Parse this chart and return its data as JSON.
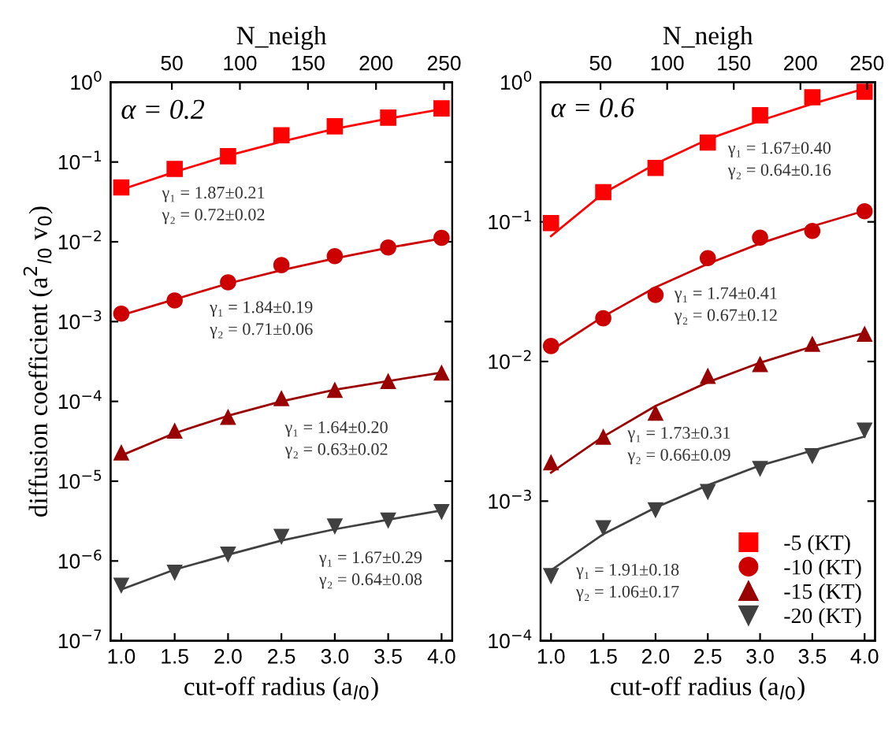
{
  "chart_data": [
    {
      "type": "scatter",
      "xlabel": "cut-off radius (a$_{l0}$)",
      "ylabel": "diffusion coefficient (a$^{2}$$_{l0}$ v$_{0}$)",
      "x2label": "N_neigh",
      "x": [
        1.0,
        1.5,
        2.0,
        2.5,
        3.0,
        3.5,
        4.0
      ],
      "xlim": [
        0.9,
        4.1
      ],
      "xticks": [
        {
          "value": 1.0,
          "label": "1.0"
        },
        {
          "value": 1.5,
          "label": "1.5"
        },
        {
          "value": 2.0,
          "label": "2.0"
        },
        {
          "value": 2.5,
          "label": "2.5"
        },
        {
          "value": 3.0,
          "label": "3.0"
        },
        {
          "value": 3.5,
          "label": "3.5"
        },
        {
          "value": 4.0,
          "label": "4.0"
        }
      ],
      "x2lim": [
        5,
        256
      ],
      "x2ticks": [
        50,
        100,
        150,
        200,
        250
      ],
      "log": true,
      "ylim": [
        1e-07,
        1
      ],
      "yticks": [
        {
          "value": 1e-07,
          "label": "10$^{−7}$"
        },
        {
          "value": 1e-06,
          "label": "10$^{−6}$"
        },
        {
          "value": 1e-05,
          "label": "10$^{−5}$"
        },
        {
          "value": 0.0001,
          "label": "10$^{−4}$"
        },
        {
          "value": 0.001,
          "label": "10$^{−3}$"
        },
        {
          "value": 0.01,
          "label": "10$^{−2}$"
        },
        {
          "value": 0.1,
          "label": "10$^{−1}$"
        },
        {
          "value": 1,
          "label": "10$^{0}$"
        }
      ],
      "grid": false,
      "legend": false,
      "series": [
        {
          "color": "#ff0000",
          "marker": "square",
          "values": [
            0.048,
            0.082,
            0.118,
            0.216,
            0.28,
            0.36,
            0.47
          ]
        },
        {
          "color": "#cc0000",
          "marker": "circle",
          "values": [
            0.00126,
            0.00184,
            0.0031,
            0.0051,
            0.0066,
            0.0085,
            0.0112
          ]
        },
        {
          "color": "#990000",
          "marker": "triangle",
          "values": [
            2.3e-05,
            4.3e-05,
            6.4e-05,
            0.00011,
            0.00014,
            0.00018,
            0.00023
          ]
        },
        {
          "color": "#404040",
          "marker": "triangle_down",
          "values": [
            4.9e-07,
            7.1e-07,
            1.2e-06,
            2e-06,
            2.7e-06,
            3.2e-06,
            4.1e-06
          ]
        },
        {
          "type": "line",
          "color": "#ff0000",
          "values": [
            0.045,
            0.075,
            0.12,
            0.18,
            0.26,
            0.35,
            0.46
          ]
        },
        {
          "type": "line",
          "color": "#cc0000",
          "values": [
            0.0012,
            0.0019,
            0.003,
            0.0044,
            0.0062,
            0.0084,
            0.011
          ]
        },
        {
          "type": "line",
          "color": "#990000",
          "values": [
            2.1e-05,
            4e-05,
            6.6e-05,
            0.0001,
            0.00014,
            0.00018,
            0.00023
          ]
        },
        {
          "type": "line",
          "color": "#404040",
          "values": [
            4.4e-07,
            7.8e-07,
            1.2e-06,
            1.8e-06,
            2.5e-06,
            3.3e-06,
            4.3e-06
          ]
        }
      ],
      "annotations": [
        "α = 0.2",
        "γ₁ = 1.87±0.21\nγ₂ = 0.72±0.02",
        "γ₁ = 1.84±0.19\nγ₂ = 0.71±0.06",
        "γ₁ = 1.64±0.20\nγ₂ = 0.63±0.02",
        "γ₁ = 1.67±0.29\nγ₂ = 0.64±0.08"
      ]
    },
    {
      "type": "scatter",
      "xlabel": "cut-off radius (a$_{l0}$)",
      "x2label": "N_neigh",
      "x": [
        1.0,
        1.5,
        2.0,
        2.5,
        3.0,
        3.5,
        4.0
      ],
      "xlim": [
        0.9,
        4.1
      ],
      "xticks": [
        {
          "value": 1.0,
          "label": "1.0"
        },
        {
          "value": 1.5,
          "label": "1.5"
        },
        {
          "value": 2.0,
          "label": "2.0"
        },
        {
          "value": 2.5,
          "label": "2.5"
        },
        {
          "value": 3.0,
          "label": "3.0"
        },
        {
          "value": 3.5,
          "label": "3.5"
        },
        {
          "value": 4.0,
          "label": "4.0"
        }
      ],
      "x2lim": [
        5,
        256
      ],
      "x2ticks": [
        50,
        100,
        150,
        200,
        250
      ],
      "log": true,
      "ylim": [
        0.0001,
        1
      ],
      "yticks": [
        {
          "value": 0.0001,
          "label": "10$^{−4}$"
        },
        {
          "value": 0.001,
          "label": "10$^{−3}$"
        },
        {
          "value": 0.01,
          "label": "10$^{−2}$"
        },
        {
          "value": 0.1,
          "label": "10$^{−1}$"
        },
        {
          "value": 1,
          "label": "10$^{0}$"
        }
      ],
      "grid": false,
      "legend": "bottom right",
      "series": [
        {
          "name": "-5 (KT)",
          "color": "#ff0000",
          "marker": "square",
          "values": [
            0.098,
            0.163,
            0.243,
            0.37,
            0.58,
            0.78,
            0.855
          ]
        },
        {
          "name": "-10 (KT)",
          "color": "#cc0000",
          "marker": "circle",
          "values": [
            0.0129,
            0.0204,
            0.03,
            0.055,
            0.077,
            0.086,
            0.119
          ]
        },
        {
          "name": "-15 (KT)",
          "color": "#990000",
          "marker": "triangle",
          "values": [
            0.0019,
            0.0029,
            0.0043,
            0.0079,
            0.0096,
            0.0134,
            0.0158
          ]
        },
        {
          "name": "-20 (KT)",
          "color": "#404040",
          "marker": "triangle_down",
          "values": [
            0.00029,
            0.00064,
            0.00086,
            0.00116,
            0.0017,
            0.0021,
            0.0032
          ]
        },
        {
          "type": "line",
          "color": "#ff0000",
          "values": [
            0.079,
            0.16,
            0.26,
            0.39,
            0.53,
            0.7,
            0.9
          ]
        },
        {
          "type": "line",
          "color": "#cc0000",
          "values": [
            0.012,
            0.021,
            0.034,
            0.05,
            0.07,
            0.093,
            0.12
          ]
        },
        {
          "type": "line",
          "color": "#990000",
          "values": [
            0.0016,
            0.0029,
            0.0048,
            0.0071,
            0.0098,
            0.0128,
            0.016
          ]
        },
        {
          "type": "line",
          "color": "#404040",
          "values": [
            0.00032,
            0.00058,
            0.0009,
            0.0013,
            0.0018,
            0.0023,
            0.0029
          ]
        }
      ],
      "annotations": [
        "α = 0.6",
        "γ₁ = 1.67±0.40\nγ₂ = 0.64±0.16",
        "γ₁ = 1.74±0.41\nγ₂ = 0.67±0.12",
        "γ₁ = 1.73±0.31\nγ₂ = 0.66±0.09",
        "γ₁ = 1.91±0.18\nγ₂ = 1.06±0.17"
      ]
    }
  ]
}
